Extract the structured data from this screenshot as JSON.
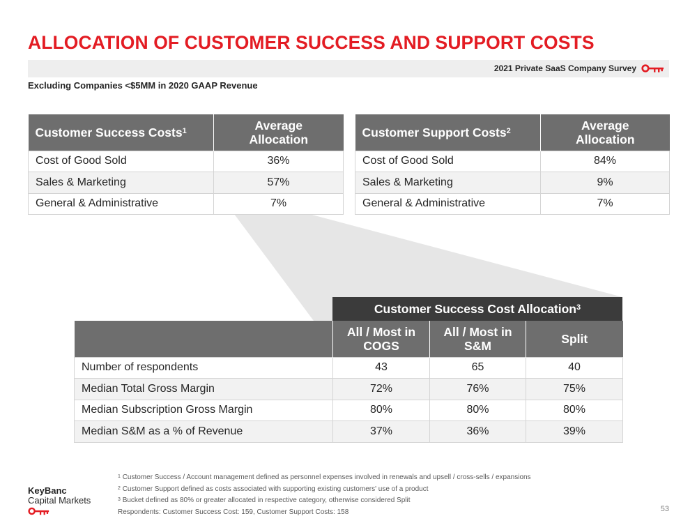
{
  "title": "ALLOCATION OF CUSTOMER SUCCESS AND SUPPORT COSTS",
  "survey_label": "2021 Private SaaS Company Survey",
  "subtitle": "Excluding Companies <$5MM in 2020 GAAP Revenue",
  "colors": {
    "accent_red": "#e31c23",
    "header_gray": "#6e6e6e",
    "header_dark": "#3b3b3b",
    "funnel_gray": "#e6e6e6"
  },
  "customer_success": {
    "header": "Customer Success Costs",
    "footnote_mark": "1",
    "col_header_line1": "Average",
    "col_header_line2": "Allocation",
    "rows": [
      {
        "label": "Cost of Good Sold",
        "value": "36%"
      },
      {
        "label": "Sales & Marketing",
        "value": "57%"
      },
      {
        "label": "General & Administrative",
        "value": "7%"
      }
    ]
  },
  "customer_support": {
    "header": "Customer Support Costs",
    "footnote_mark": "2",
    "col_header_line1": "Average",
    "col_header_line2": "Allocation",
    "rows": [
      {
        "label": "Cost of Good Sold",
        "value": "84%"
      },
      {
        "label": "Sales & Marketing",
        "value": "9%"
      },
      {
        "label": "General & Administrative",
        "value": "7%"
      }
    ]
  },
  "allocation": {
    "header": "Customer Success Cost Allocation",
    "footnote_mark": "3",
    "columns": [
      {
        "line1": "All / Most in",
        "line2": "COGS"
      },
      {
        "line1": "All / Most in",
        "line2": "S&M"
      },
      {
        "line1": "Split",
        "line2": ""
      }
    ],
    "rows": [
      {
        "label": "Number of respondents",
        "values": [
          "43",
          "65",
          "40"
        ]
      },
      {
        "label": "Median Total Gross Margin",
        "values": [
          "72%",
          "76%",
          "75%"
        ]
      },
      {
        "label": "Median Subscription Gross Margin",
        "values": [
          "80%",
          "80%",
          "80%"
        ]
      },
      {
        "label": "Median S&M as a % of Revenue",
        "values": [
          "37%",
          "36%",
          "39%"
        ]
      }
    ]
  },
  "footnotes": [
    {
      "mark": "1",
      "text": "Customer Success / Account management defined as personnel expenses involved in renewals and upsell / cross-sells / expansions"
    },
    {
      "mark": "2",
      "text": "Customer Support defined as costs associated with supporting existing customers' use of a product"
    },
    {
      "mark": "3",
      "text": "Bucket defined as 80% or greater allocated in respective category, otherwise considered Split"
    },
    {
      "mark": "",
      "text": "Respondents: Customer Success Cost: 159, Customer Support Costs: 158"
    }
  ],
  "brand": {
    "name": "KeyBanc",
    "sub": "Capital Markets",
    "logo_icon": "key-icon"
  },
  "page_number": "53"
}
